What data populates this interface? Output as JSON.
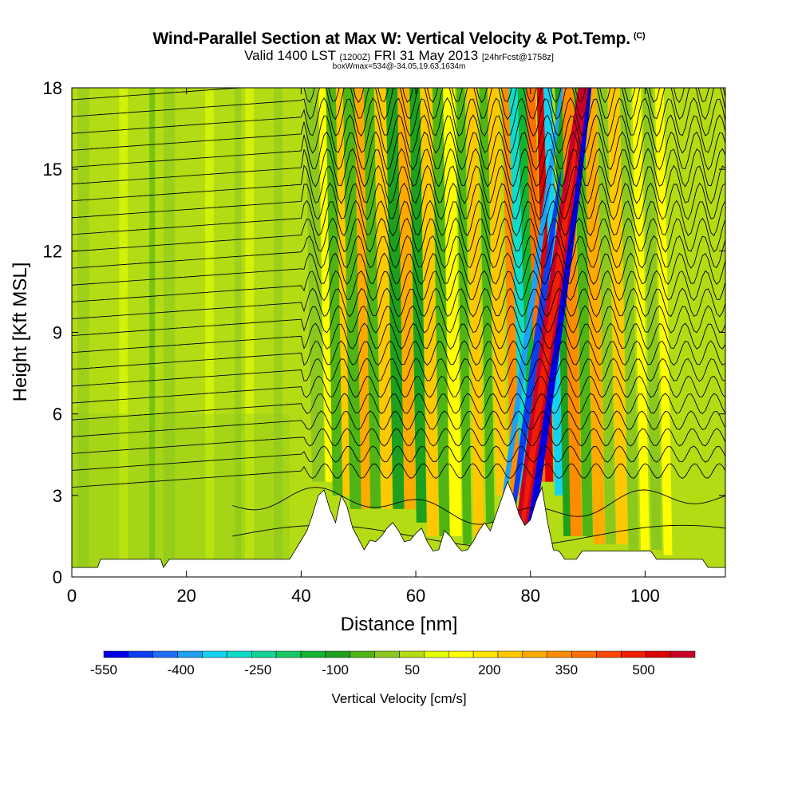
{
  "header": {
    "title": "Wind-Parallel Section at Max W: Vertical Velocity & Pot.Temp.",
    "copyright": "(C)",
    "valid_prefix": "Valid 1400 LST",
    "valid_z": "(1200Z)",
    "valid_date": "FRI 31 May 2013",
    "forecast": "[24hrFcst@1758z]",
    "boxinfo": "boxWmax=534@-34.05,19.63,1634m"
  },
  "chart_data": {
    "type": "heatmap",
    "xlabel": "Distance [nm]",
    "ylabel": "Height [Kft MSL]",
    "xlim": [
      0,
      114
    ],
    "ylim": [
      0,
      18
    ],
    "x_ticks": [
      0,
      20,
      40,
      60,
      80,
      100
    ],
    "y_ticks": [
      0,
      3,
      6,
      9,
      12,
      15,
      18
    ],
    "colorbar": {
      "label": "Vertical Velocity [cm/s]",
      "range": [
        -550,
        600
      ],
      "step": 50,
      "tick_labels": [
        "-550",
        "-400",
        "-250",
        "-100",
        "50",
        "200",
        "350",
        "500"
      ],
      "colors": [
        "#0000e6",
        "#0a3cf0",
        "#1e6ef5",
        "#1ea0f5",
        "#14d2f0",
        "#0fdcc8",
        "#14d296",
        "#14c864",
        "#12b432",
        "#1ea01e",
        "#50b414",
        "#8cc81e",
        "#b4dc14",
        "#e6ff00",
        "#ffff00",
        "#ffe600",
        "#ffc800",
        "#ffaa00",
        "#ff8c00",
        "#ff6e00",
        "#ff4600",
        "#f01e00",
        "#dc0000",
        "#c80028"
      ]
    },
    "terrain_kft": [
      [
        0,
        0.35
      ],
      [
        4.5,
        0.35
      ],
      [
        5,
        0.65
      ],
      [
        15.5,
        0.65
      ],
      [
        16,
        0.35
      ],
      [
        17,
        0.65
      ],
      [
        38,
        0.65
      ],
      [
        39,
        1.0
      ],
      [
        40,
        1.35
      ],
      [
        41,
        1.7
      ],
      [
        42,
        2.3
      ],
      [
        43,
        3.0
      ],
      [
        44,
        3.2
      ],
      [
        45,
        2.5
      ],
      [
        46,
        2.0
      ],
      [
        47,
        3.0
      ],
      [
        48,
        2.6
      ],
      [
        49,
        1.8
      ],
      [
        50,
        1.4
      ],
      [
        51,
        1.0
      ],
      [
        52,
        1.35
      ],
      [
        53,
        1.3
      ],
      [
        54,
        1.5
      ],
      [
        55,
        1.8
      ],
      [
        56,
        2.0
      ],
      [
        57,
        1.7
      ],
      [
        58,
        1.3
      ],
      [
        59,
        1.35
      ],
      [
        60,
        1.6
      ],
      [
        61,
        1.8
      ],
      [
        62,
        1.3
      ],
      [
        63,
        0.95
      ],
      [
        64,
        1.0
      ],
      [
        65,
        1.7
      ],
      [
        66,
        1.5
      ],
      [
        67,
        1.2
      ],
      [
        68,
        0.95
      ],
      [
        69,
        1.0
      ],
      [
        70,
        1.3
      ],
      [
        71,
        1.7
      ],
      [
        72,
        2.0
      ],
      [
        73,
        1.7
      ],
      [
        74,
        2.3
      ],
      [
        75,
        2.9
      ],
      [
        76,
        3.5
      ],
      [
        77,
        3.0
      ],
      [
        78,
        2.3
      ],
      [
        79,
        1.9
      ],
      [
        80,
        2.1
      ],
      [
        81,
        2.8
      ],
      [
        82,
        3.3
      ],
      [
        83,
        2.0
      ],
      [
        84,
        1.0
      ],
      [
        85,
        0.95
      ],
      [
        86,
        0.65
      ],
      [
        88,
        0.65
      ],
      [
        89,
        0.95
      ],
      [
        101,
        0.95
      ],
      [
        102,
        0.65
      ],
      [
        110,
        0.65
      ],
      [
        111,
        0.35
      ],
      [
        114,
        0.35
      ]
    ]
  }
}
